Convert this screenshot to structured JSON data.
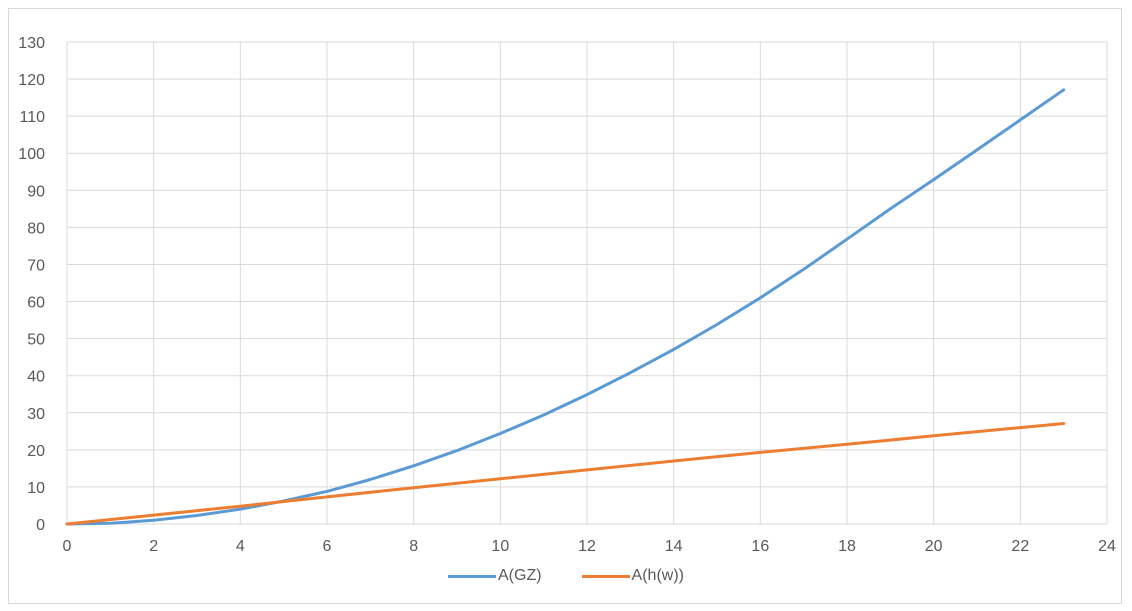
{
  "chart_data": {
    "type": "line",
    "title": "",
    "xlabel": "",
    "ylabel": "",
    "xlim": [
      0,
      24
    ],
    "ylim": [
      0,
      130
    ],
    "xticks": [
      0,
      2,
      4,
      6,
      8,
      10,
      12,
      14,
      16,
      18,
      20,
      22,
      24
    ],
    "yticks": [
      0,
      10,
      20,
      30,
      40,
      50,
      60,
      70,
      80,
      90,
      100,
      110,
      120,
      130
    ],
    "grid": true,
    "legend_position": "bottom",
    "series": [
      {
        "name": "A(GZ)",
        "color": "#5b9bd5",
        "x": [
          0,
          1,
          2,
          3,
          4,
          5,
          6,
          7,
          8,
          9,
          10,
          11,
          12,
          13,
          14,
          15,
          16,
          17,
          18,
          19,
          20,
          21,
          22,
          23
        ],
        "y": [
          0,
          0.2,
          1.0,
          2.3,
          4.0,
          6.2,
          8.8,
          12.0,
          15.7,
          19.8,
          24.4,
          29.4,
          34.9,
          40.8,
          47.1,
          53.8,
          61.0,
          68.7,
          76.8,
          85.0,
          92.9,
          100.9,
          109.0,
          117.1
        ]
      },
      {
        "name": "A(h(w))",
        "color": "#ed7d31",
        "x": [
          0,
          2,
          4,
          6,
          8,
          10,
          12,
          14,
          16,
          18,
          20,
          22,
          23
        ],
        "y": [
          0,
          2.4,
          4.8,
          7.3,
          9.8,
          12.2,
          14.6,
          17.0,
          19.3,
          21.5,
          23.8,
          26.0,
          27.1
        ]
      }
    ]
  }
}
